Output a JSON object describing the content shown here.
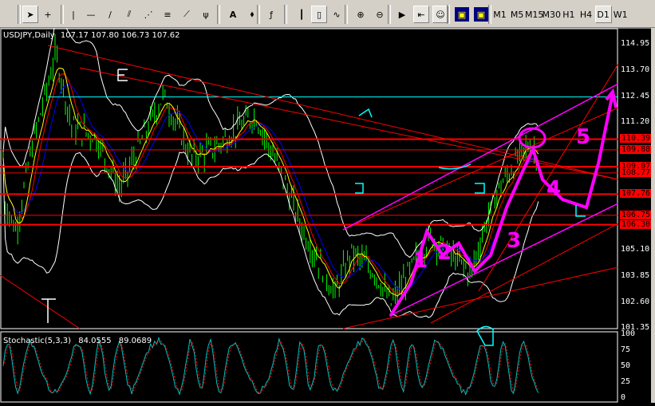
{
  "toolbar": {
    "tools": [
      "cursor-icon",
      "crosshair-icon",
      "vertical-line-icon",
      "horizontal-line-icon",
      "trendline-icon",
      "channel-icon",
      "gann-fan-icon",
      "fibonacci-icon",
      "pitchfork-icon",
      "fibo-fan-icon",
      "text-icon",
      "arrow-label-icon",
      "indicators-icon",
      "bar-chart-icon",
      "candlestick-icon",
      "line-chart-icon",
      "zoom-in-icon",
      "zoom-out-icon",
      "auto-scroll-icon",
      "chart-shift-icon",
      "expert-advisor-icon",
      "period-icon",
      "templates-icon"
    ],
    "text_tool_label": "A",
    "timeframes": [
      "M1",
      "M5",
      "M15",
      "M30",
      "H1",
      "H4",
      "D1",
      "W1"
    ],
    "active_timeframe": "D1"
  },
  "chart": {
    "symbol_label": "USDJPY,Daily",
    "ohlc": [
      "107.17",
      "107.80",
      "106.73",
      "107.62"
    ],
    "price_axis": [
      "114.95",
      "113.70",
      "112.45",
      "111.20",
      "110.39",
      "109.88",
      "109.07",
      "108.77",
      "107.76",
      "106.75",
      "106.30",
      "105.10",
      "103.85",
      "102.60",
      "101.35"
    ],
    "price_tags": [
      "110.39",
      "109.88",
      "109.07",
      "108.77",
      "107.76",
      "106.75",
      "106.30"
    ],
    "bar_color": "#00ff00",
    "level_color": "#ff0000",
    "annotation_color": "#ff00ff",
    "annotations": [
      "1",
      "2",
      "3",
      "4",
      "5"
    ]
  },
  "stochastic": {
    "label": "Stochastic(5,3,3)",
    "main": "84.0555",
    "signal": "89.0689",
    "axis": [
      "100",
      "75",
      "50",
      "25",
      "0"
    ],
    "main_color": "#00c0c0",
    "signal_color": "#ff0000"
  }
}
